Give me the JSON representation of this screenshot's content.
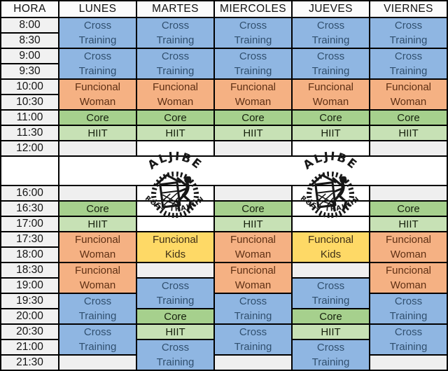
{
  "colors": {
    "cross": "#8FB6E2",
    "woman": "#F5B183",
    "kids": "#FED966",
    "core": "#A6D08D",
    "hiit": "#C7E1B5",
    "empty": "#EFEFEF",
    "timeCell": "#F1F1F1",
    "headerCell": "#FBFBFB",
    "crossText": "#31506F",
    "womanText": "#5F3014",
    "kidsText": "#3E2F16",
    "logoInk": "#171717"
  },
  "logo": {
    "top_text": "ALJIBE",
    "bottom_text": "CROSS TRAINING"
  },
  "table": {
    "header": [
      "HORA",
      "LUNES",
      "MARTES",
      "MIERCOLES",
      "JUEVES",
      "VIERNES"
    ],
    "times": [
      "8:00",
      "8:30",
      "9:00",
      "9:30",
      "10:00",
      "10:30",
      "11:00",
      "11:30",
      "12:00",
      "",
      "16:00",
      "16:30",
      "17:00",
      "17:30",
      "18:00",
      "18:30",
      "19:00",
      "19:30",
      "20:00",
      "20:30",
      "21:00",
      "21:30"
    ],
    "gap_row_index": 9,
    "columns": [
      {
        "day": "LUNES",
        "blocks": [
          {
            "row": 0,
            "span": 2,
            "type": "cross",
            "lines": [
              "Cross",
              "Training"
            ]
          },
          {
            "row": 2,
            "span": 2,
            "type": "cross",
            "lines": [
              "Cross",
              "Training"
            ]
          },
          {
            "row": 4,
            "span": 2,
            "type": "woman",
            "lines": [
              "Funcional",
              "Woman"
            ]
          },
          {
            "row": 6,
            "span": 1,
            "type": "core",
            "lines": [
              "Core"
            ]
          },
          {
            "row": 7,
            "span": 1,
            "type": "hiit",
            "lines": [
              "HIIT"
            ]
          },
          {
            "row": 8,
            "span": 1,
            "type": "empty",
            "lines": []
          },
          {
            "row": 10,
            "span": 1,
            "type": "empty",
            "lines": []
          },
          {
            "row": 11,
            "span": 1,
            "type": "core",
            "lines": [
              "Core"
            ]
          },
          {
            "row": 12,
            "span": 1,
            "type": "hiit",
            "lines": [
              "HIIT"
            ]
          },
          {
            "row": 13,
            "span": 2,
            "type": "woman",
            "lines": [
              "Funcional",
              "Woman"
            ]
          },
          {
            "row": 15,
            "span": 2,
            "type": "woman",
            "lines": [
              "Funcional",
              "Woman"
            ]
          },
          {
            "row": 17,
            "span": 2,
            "type": "cross",
            "lines": [
              "Cross",
              "Training"
            ]
          },
          {
            "row": 19,
            "span": 2,
            "type": "cross",
            "lines": [
              "Cross",
              "Training"
            ]
          },
          {
            "row": 21,
            "span": 1,
            "type": "empty",
            "lines": []
          }
        ]
      },
      {
        "day": "MARTES",
        "blocks": [
          {
            "row": 0,
            "span": 2,
            "type": "cross",
            "lines": [
              "Cross",
              "Training"
            ]
          },
          {
            "row": 2,
            "span": 2,
            "type": "cross",
            "lines": [
              "Cross",
              "Training"
            ]
          },
          {
            "row": 4,
            "span": 2,
            "type": "woman",
            "lines": [
              "Funcional",
              "Woman"
            ]
          },
          {
            "row": 6,
            "span": 1,
            "type": "core",
            "lines": [
              "Core"
            ]
          },
          {
            "row": 7,
            "span": 1,
            "type": "hiit",
            "lines": [
              "HIIT"
            ]
          },
          {
            "row": 8,
            "span": 1,
            "type": "white",
            "lines": []
          },
          {
            "row": 10,
            "span": 1,
            "type": "white",
            "lines": []
          },
          {
            "row": 11,
            "span": 1,
            "type": "white",
            "lines": []
          },
          {
            "row": 12,
            "span": 1,
            "type": "white",
            "lines": []
          },
          {
            "row": 13,
            "span": 2,
            "type": "kids",
            "lines": [
              "Funcional",
              "Kids"
            ]
          },
          {
            "row": 15,
            "span": 1,
            "type": "empty",
            "lines": []
          },
          {
            "row": 16,
            "span": 2,
            "type": "cross",
            "lines": [
              "Cross",
              "Training"
            ]
          },
          {
            "row": 18,
            "span": 1,
            "type": "core",
            "lines": [
              "Core"
            ]
          },
          {
            "row": 19,
            "span": 1,
            "type": "hiit",
            "lines": [
              "HIIT"
            ]
          },
          {
            "row": 20,
            "span": 2,
            "type": "cross",
            "lines": [
              "Cross",
              "Training"
            ]
          }
        ]
      },
      {
        "day": "MIERCOLES",
        "blocks": [
          {
            "row": 0,
            "span": 2,
            "type": "cross",
            "lines": [
              "Cross",
              "Training"
            ]
          },
          {
            "row": 2,
            "span": 2,
            "type": "cross",
            "lines": [
              "Cross",
              "Training"
            ]
          },
          {
            "row": 4,
            "span": 2,
            "type": "woman",
            "lines": [
              "Funcional",
              "Woman"
            ]
          },
          {
            "row": 6,
            "span": 1,
            "type": "core",
            "lines": [
              "Core"
            ]
          },
          {
            "row": 7,
            "span": 1,
            "type": "hiit",
            "lines": [
              "HIIT"
            ]
          },
          {
            "row": 8,
            "span": 1,
            "type": "empty",
            "lines": []
          },
          {
            "row": 10,
            "span": 1,
            "type": "empty",
            "lines": []
          },
          {
            "row": 11,
            "span": 1,
            "type": "core",
            "lines": [
              "Core"
            ]
          },
          {
            "row": 12,
            "span": 1,
            "type": "hiit",
            "lines": [
              "HIIT"
            ]
          },
          {
            "row": 13,
            "span": 2,
            "type": "woman",
            "lines": [
              "Funcional",
              "Woman"
            ]
          },
          {
            "row": 15,
            "span": 2,
            "type": "woman",
            "lines": [
              "Funcional",
              "Woman"
            ]
          },
          {
            "row": 17,
            "span": 2,
            "type": "cross",
            "lines": [
              "Cross",
              "Training"
            ]
          },
          {
            "row": 19,
            "span": 2,
            "type": "cross",
            "lines": [
              "Cross",
              "Training"
            ]
          },
          {
            "row": 21,
            "span": 1,
            "type": "empty",
            "lines": []
          }
        ]
      },
      {
        "day": "JUEVES",
        "blocks": [
          {
            "row": 0,
            "span": 2,
            "type": "cross",
            "lines": [
              "Cross",
              "Training"
            ]
          },
          {
            "row": 2,
            "span": 2,
            "type": "cross",
            "lines": [
              "Cross",
              "Training"
            ]
          },
          {
            "row": 4,
            "span": 2,
            "type": "woman",
            "lines": [
              "Funcional",
              "Woman"
            ]
          },
          {
            "row": 6,
            "span": 1,
            "type": "core",
            "lines": [
              "Core"
            ]
          },
          {
            "row": 7,
            "span": 1,
            "type": "hiit",
            "lines": [
              "HIIT"
            ]
          },
          {
            "row": 8,
            "span": 1,
            "type": "white",
            "lines": []
          },
          {
            "row": 10,
            "span": 1,
            "type": "white",
            "lines": []
          },
          {
            "row": 11,
            "span": 1,
            "type": "white",
            "lines": []
          },
          {
            "row": 12,
            "span": 1,
            "type": "white",
            "lines": []
          },
          {
            "row": 13,
            "span": 2,
            "type": "kids",
            "lines": [
              "Funcional",
              "Kids"
            ]
          },
          {
            "row": 15,
            "span": 1,
            "type": "empty",
            "lines": []
          },
          {
            "row": 16,
            "span": 2,
            "type": "cross",
            "lines": [
              "Cross",
              "Training"
            ]
          },
          {
            "row": 18,
            "span": 1,
            "type": "core",
            "lines": [
              "Core"
            ]
          },
          {
            "row": 19,
            "span": 1,
            "type": "hiit",
            "lines": [
              "HIIT"
            ]
          },
          {
            "row": 20,
            "span": 2,
            "type": "cross",
            "lines": [
              "Cross",
              "Training"
            ]
          }
        ]
      },
      {
        "day": "VIERNES",
        "blocks": [
          {
            "row": 0,
            "span": 2,
            "type": "cross",
            "lines": [
              "Cross",
              "Training"
            ]
          },
          {
            "row": 2,
            "span": 2,
            "type": "cross",
            "lines": [
              "Cross",
              "Training"
            ]
          },
          {
            "row": 4,
            "span": 2,
            "type": "woman",
            "lines": [
              "Funcional",
              "Woman"
            ]
          },
          {
            "row": 6,
            "span": 1,
            "type": "core",
            "lines": [
              "Core"
            ]
          },
          {
            "row": 7,
            "span": 1,
            "type": "hiit",
            "lines": [
              "HIIT"
            ]
          },
          {
            "row": 8,
            "span": 1,
            "type": "empty",
            "lines": []
          },
          {
            "row": 10,
            "span": 1,
            "type": "empty",
            "lines": []
          },
          {
            "row": 11,
            "span": 1,
            "type": "core",
            "lines": [
              "Core"
            ]
          },
          {
            "row": 12,
            "span": 1,
            "type": "hiit",
            "lines": [
              "HIIT"
            ]
          },
          {
            "row": 13,
            "span": 2,
            "type": "woman",
            "lines": [
              "Funcional",
              "Woman"
            ]
          },
          {
            "row": 15,
            "span": 2,
            "type": "woman",
            "lines": [
              "Funcional",
              "Woman"
            ]
          },
          {
            "row": 17,
            "span": 2,
            "type": "cross",
            "lines": [
              "Cross",
              "Training"
            ]
          },
          {
            "row": 19,
            "span": 2,
            "type": "cross",
            "lines": [
              "Cross",
              "Training"
            ]
          },
          {
            "row": 21,
            "span": 1,
            "type": "empty",
            "lines": []
          }
        ]
      }
    ]
  }
}
